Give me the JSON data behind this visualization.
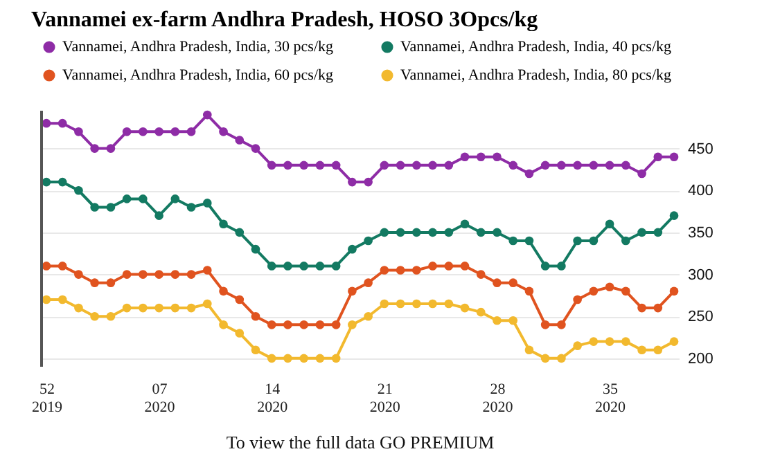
{
  "chart_data": {
    "type": "line",
    "title": "Vannamei ex-farm Andhra Pradesh, HOSO 3Opcs/kg",
    "categories": [
      "52\n2019",
      null,
      null,
      null,
      null,
      null,
      null,
      "07\n2020",
      null,
      null,
      null,
      null,
      null,
      null,
      "14\n2020",
      null,
      null,
      null,
      null,
      null,
      null,
      "21\n2020",
      null,
      null,
      null,
      null,
      null,
      null,
      "28\n2020",
      null,
      null,
      null,
      null,
      null,
      null,
      "35\n2020",
      null,
      null,
      null,
      null
    ],
    "series": [
      {
        "name": "Vannamei, Andhra Pradesh, India, 30 pcs/kg",
        "color": "#8e2ca6",
        "values": [
          480,
          480,
          470,
          450,
          450,
          470,
          470,
          470,
          470,
          470,
          490,
          470,
          460,
          450,
          430,
          430,
          430,
          430,
          430,
          410,
          410,
          430,
          430,
          430,
          430,
          430,
          440,
          440,
          440,
          430,
          420,
          430,
          430,
          430,
          430,
          430,
          430,
          420,
          440,
          440
        ]
      },
      {
        "name": "Vannamei, Andhra Pradesh, India, 40 pcs/kg",
        "color": "#137a62",
        "values": [
          410,
          410,
          400,
          380,
          380,
          390,
          390,
          370,
          390,
          380,
          385,
          360,
          350,
          330,
          310,
          310,
          310,
          310,
          310,
          330,
          340,
          350,
          350,
          350,
          350,
          350,
          360,
          350,
          350,
          340,
          340,
          310,
          310,
          340,
          340,
          360,
          340,
          350,
          350,
          370
        ]
      },
      {
        "name": "Vannamei, Andhra Pradesh, India, 60 pcs/kg",
        "color": "#e0531f",
        "values": [
          310,
          310,
          300,
          290,
          290,
          300,
          300,
          300,
          300,
          300,
          305,
          280,
          270,
          250,
          240,
          240,
          240,
          240,
          240,
          280,
          290,
          305,
          305,
          305,
          310,
          310,
          310,
          300,
          290,
          290,
          280,
          240,
          240,
          270,
          280,
          285,
          280,
          260,
          260,
          280
        ]
      },
      {
        "name": "Vannamei, Andhra Pradesh, India, 80 pcs/kg",
        "color": "#f2b92e",
        "values": [
          270,
          270,
          260,
          250,
          250,
          260,
          260,
          260,
          260,
          260,
          265,
          240,
          230,
          210,
          200,
          200,
          200,
          200,
          200,
          240,
          250,
          265,
          265,
          265,
          265,
          265,
          260,
          255,
          245,
          245,
          210,
          200,
          200,
          215,
          220,
          220,
          220,
          210,
          210,
          220
        ]
      }
    ],
    "ylim": [
      190,
      495
    ],
    "yticks": [
      200,
      250,
      300,
      350,
      400,
      450
    ],
    "grid": "y",
    "legend": "top",
    "marker": "circle",
    "line_style": "solid",
    "annotations": [
      "To view the full data GO PREMIUM"
    ]
  }
}
